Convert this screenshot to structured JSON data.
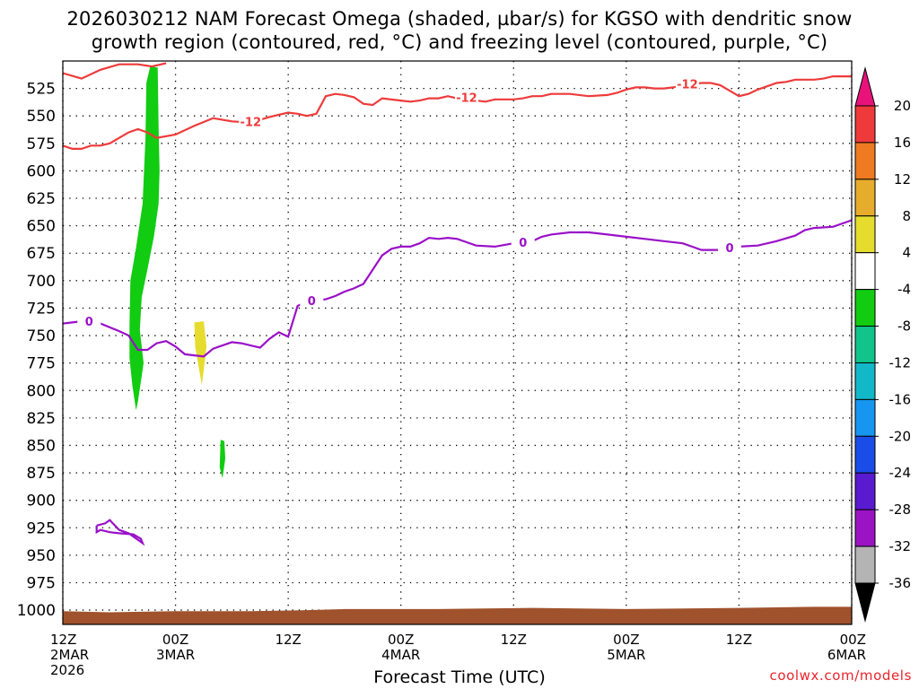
{
  "title": {
    "line1": "2026030212 NAM Forecast Omega (shaded, µbar/s) for KGSO with dendritic snow",
    "line2": "growth region (contoured, red, °C) and freezing level (contoured, purple, °C)"
  },
  "credit": "coolwx.com/models",
  "chart_data": {
    "type": "time-height section",
    "xlabel": "Forecast Time (UTC)",
    "x_ticks": [
      {
        "hour": 0,
        "lines": [
          "12Z",
          "2MAR",
          "2026"
        ]
      },
      {
        "hour": 12,
        "lines": [
          "00Z",
          "3MAR"
        ]
      },
      {
        "hour": 24,
        "lines": [
          "12Z"
        ]
      },
      {
        "hour": 36,
        "lines": [
          "00Z",
          "4MAR"
        ]
      },
      {
        "hour": 48,
        "lines": [
          "12Z"
        ]
      },
      {
        "hour": 60,
        "lines": [
          "00Z",
          "5MAR"
        ]
      },
      {
        "hour": 72,
        "lines": [
          "12Z"
        ]
      },
      {
        "hour": 84,
        "lines": [
          "00Z",
          "6MAR"
        ]
      }
    ],
    "x_range_hours": [
      0,
      84
    ],
    "y_range_hPa": [
      500,
      1013
    ],
    "y_ticks": [
      "525",
      "550",
      "575",
      "600",
      "625",
      "650",
      "675",
      "700",
      "725",
      "750",
      "775",
      "800",
      "825",
      "850",
      "875",
      "900",
      "925",
      "950",
      "975",
      "1000"
    ],
    "grid": true,
    "colorbar": {
      "labels": [
        "20",
        "16",
        "12",
        "8",
        "4",
        "-4",
        "-8",
        "-12",
        "-16",
        "-20",
        "-24",
        "-28",
        "-32",
        "-36"
      ],
      "levels": [
        20,
        16,
        12,
        8,
        4,
        -4,
        -8,
        -12,
        -16,
        -20,
        -24,
        -28,
        -32,
        -36
      ],
      "top_triangle_color": "#e8127a",
      "bottom_triangle_color": "#000000",
      "bins": [
        {
          "color": "#ee3a3a"
        },
        {
          "color": "#ee7a22"
        },
        {
          "color": "#e6ac2b"
        },
        {
          "color": "#e6dc2e"
        },
        {
          "color": "#ffffff"
        },
        {
          "color": "#11cc11"
        },
        {
          "color": "#10c48a"
        },
        {
          "color": "#12b8c8"
        },
        {
          "color": "#1696f0"
        },
        {
          "color": "#1a4ce8"
        },
        {
          "color": "#5a1ad0"
        },
        {
          "color": "#9a14c4"
        },
        {
          "color": "#b4b4b4"
        }
      ]
    },
    "contour_labels": {
      "dgz_label": "-12",
      "freezing_label": "0"
    },
    "dgz_upper": [
      [
        0,
        511
      ],
      [
        2,
        516
      ],
      [
        4,
        508
      ],
      [
        6,
        503
      ],
      [
        8,
        503
      ],
      [
        9.5,
        505
      ],
      [
        11,
        502
      ]
    ],
    "dgz_lower": [
      [
        0,
        577
      ],
      [
        1,
        580
      ],
      [
        2,
        580
      ],
      [
        3,
        577
      ],
      [
        4,
        577
      ],
      [
        5,
        575
      ],
      [
        6,
        570
      ],
      [
        7,
        565
      ],
      [
        8,
        562
      ],
      [
        9,
        565
      ],
      [
        10,
        570
      ],
      [
        12,
        567
      ],
      [
        14,
        559
      ],
      [
        16,
        552
      ],
      [
        18,
        555
      ],
      [
        20,
        556
      ],
      [
        22,
        551
      ],
      [
        24,
        547
      ],
      [
        25,
        548
      ],
      [
        26,
        550
      ],
      [
        27,
        548
      ],
      [
        28,
        532
      ],
      [
        29,
        530
      ],
      [
        30,
        531
      ],
      [
        31,
        533
      ],
      [
        32,
        539
      ],
      [
        33,
        540
      ],
      [
        34,
        534
      ],
      [
        36,
        536
      ],
      [
        37,
        537
      ],
      [
        38,
        536
      ],
      [
        39,
        534
      ],
      [
        40,
        534
      ],
      [
        41,
        532
      ],
      [
        42,
        534
      ],
      [
        43,
        533
      ],
      [
        44,
        536
      ],
      [
        45,
        537
      ],
      [
        46,
        535
      ],
      [
        48,
        535
      ],
      [
        49,
        534
      ],
      [
        50,
        532
      ],
      [
        51,
        532
      ],
      [
        52,
        530
      ],
      [
        54,
        530
      ],
      [
        56,
        532
      ],
      [
        58,
        531
      ],
      [
        59,
        529
      ],
      [
        60,
        526
      ],
      [
        61,
        524
      ],
      [
        62,
        524
      ],
      [
        63,
        525
      ],
      [
        64,
        525
      ],
      [
        65,
        524
      ],
      [
        66,
        522
      ],
      [
        67,
        521
      ],
      [
        68,
        520
      ],
      [
        69,
        520
      ],
      [
        70,
        522
      ],
      [
        71,
        527
      ],
      [
        72,
        532
      ],
      [
        73,
        530
      ],
      [
        74,
        526
      ],
      [
        75,
        523
      ],
      [
        76,
        520
      ],
      [
        77,
        519
      ],
      [
        78,
        517
      ],
      [
        80,
        517
      ],
      [
        81,
        516
      ],
      [
        82,
        514
      ],
      [
        83,
        514
      ],
      [
        84,
        514
      ]
    ],
    "freezing_level": [
      [
        0,
        739
      ],
      [
        2,
        737
      ],
      [
        4,
        739
      ],
      [
        6,
        746
      ],
      [
        7,
        750
      ],
      [
        8,
        763
      ],
      [
        9,
        763
      ],
      [
        10,
        757
      ],
      [
        11,
        755
      ],
      [
        12,
        760
      ],
      [
        13,
        767
      ],
      [
        14,
        768
      ],
      [
        15,
        769
      ],
      [
        16,
        762
      ],
      [
        18,
        756
      ],
      [
        19,
        757
      ],
      [
        20,
        759
      ],
      [
        21,
        761
      ],
      [
        22,
        753
      ],
      [
        23,
        747
      ],
      [
        24,
        751
      ],
      [
        25,
        723
      ],
      [
        26,
        719
      ],
      [
        27,
        718
      ],
      [
        28,
        717
      ],
      [
        29,
        714
      ],
      [
        30,
        710
      ],
      [
        31,
        707
      ],
      [
        32,
        703
      ],
      [
        33,
        690
      ],
      [
        34,
        677
      ],
      [
        35,
        671
      ],
      [
        36,
        669
      ],
      [
        37,
        669
      ],
      [
        38,
        666
      ],
      [
        39,
        661
      ],
      [
        40,
        662
      ],
      [
        41,
        661
      ],
      [
        42,
        662
      ],
      [
        43,
        665
      ],
      [
        44,
        668
      ],
      [
        46,
        669
      ],
      [
        48,
        666
      ],
      [
        50,
        664
      ],
      [
        51,
        660
      ],
      [
        52,
        658
      ],
      [
        54,
        656
      ],
      [
        56,
        656
      ],
      [
        58,
        658
      ],
      [
        60,
        660
      ],
      [
        62,
        662
      ],
      [
        64,
        664
      ],
      [
        66,
        666
      ],
      [
        67,
        669
      ],
      [
        68,
        672
      ],
      [
        70,
        672
      ],
      [
        71,
        670
      ],
      [
        72,
        669
      ],
      [
        74,
        668
      ],
      [
        76,
        664
      ],
      [
        78,
        659
      ],
      [
        79,
        654
      ],
      [
        80,
        652
      ],
      [
        82,
        651
      ],
      [
        84,
        645
      ]
    ],
    "freezing_closed": [
      [
        3.6,
        923
      ],
      [
        4.5,
        921
      ],
      [
        5,
        918
      ],
      [
        6,
        927
      ],
      [
        7,
        930
      ],
      [
        8,
        936
      ],
      [
        8.5,
        939
      ],
      [
        8.3,
        935
      ],
      [
        7.5,
        931
      ],
      [
        6,
        930
      ],
      [
        5,
        929
      ],
      [
        4,
        927
      ],
      [
        3.6,
        929
      ],
      [
        3.6,
        923
      ]
    ],
    "omega_areas": [
      {
        "color": "#11cc11",
        "polygon": [
          [
            9.3,
            505
          ],
          [
            10.1,
            506
          ],
          [
            10.2,
            560
          ],
          [
            10.3,
            600
          ],
          [
            10.2,
            630
          ],
          [
            9.7,
            660
          ],
          [
            9.0,
            690
          ],
          [
            8.4,
            715
          ],
          [
            8.2,
            745
          ],
          [
            8.6,
            775
          ],
          [
            8.0,
            810
          ],
          [
            7.8,
            818
          ],
          [
            7.4,
            795
          ],
          [
            7.1,
            770
          ],
          [
            7.1,
            740
          ],
          [
            7.2,
            700
          ],
          [
            7.8,
            670
          ],
          [
            8.5,
            630
          ],
          [
            8.8,
            570
          ],
          [
            8.9,
            520
          ]
        ]
      },
      {
        "color": "#e6dc2e",
        "polygon": [
          [
            14.0,
            738
          ],
          [
            15.0,
            737
          ],
          [
            15.3,
            760
          ],
          [
            15.1,
            775
          ],
          [
            14.8,
            795
          ],
          [
            14.5,
            780
          ],
          [
            14.1,
            760
          ]
        ]
      },
      {
        "color": "#11cc11",
        "polygon": [
          [
            16.8,
            845
          ],
          [
            17.2,
            846
          ],
          [
            17.3,
            862
          ],
          [
            17.0,
            880
          ],
          [
            16.7,
            870
          ]
        ]
      }
    ],
    "terrain_color": "#a0522d",
    "terrain_top_hPa": [
      [
        0,
        1001
      ],
      [
        5,
        1002
      ],
      [
        12,
        1001
      ],
      [
        20,
        1001
      ],
      [
        26,
        1000
      ],
      [
        30,
        999
      ],
      [
        40,
        999
      ],
      [
        50,
        998
      ],
      [
        60,
        999
      ],
      [
        72,
        998
      ],
      [
        80,
        997
      ],
      [
        84,
        997
      ]
    ]
  }
}
